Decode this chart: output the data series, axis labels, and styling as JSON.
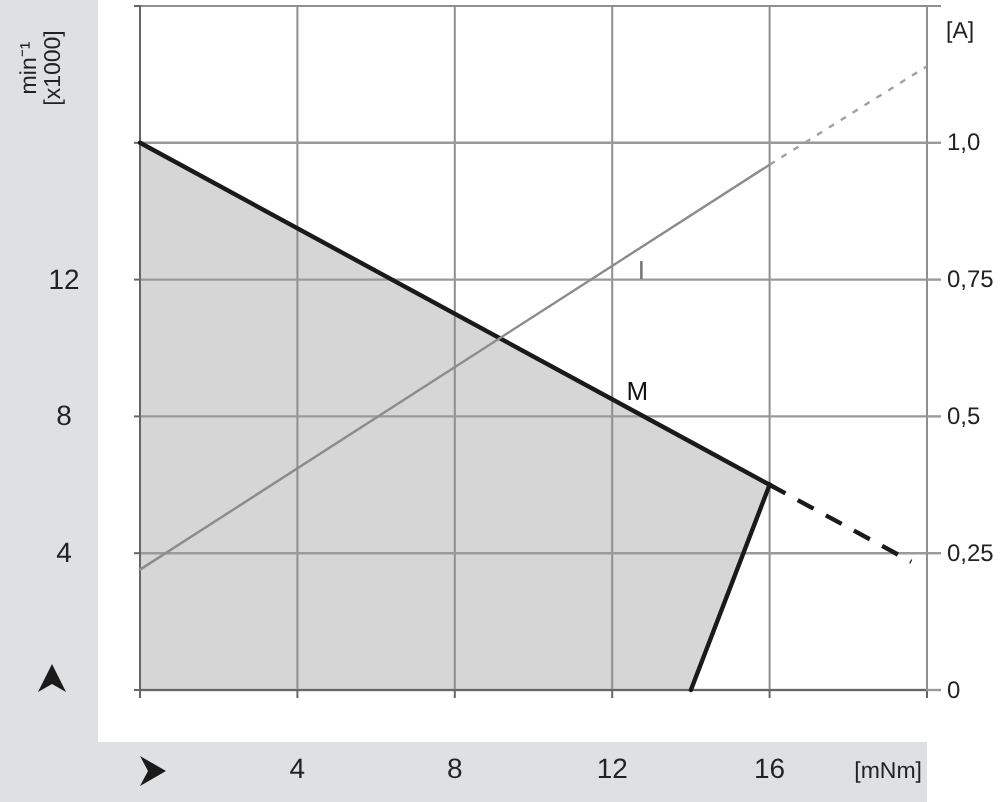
{
  "chart_data": {
    "type": "line",
    "xlabel": "[mNm]",
    "ylabel": "min⁻¹\n[x1000]",
    "y2label": "[A]",
    "xlim": [
      0,
      20
    ],
    "xticks": [
      {
        "value": 0,
        "label": null
      },
      4,
      8,
      12,
      16
    ],
    "ylim": [
      0,
      20
    ],
    "yticks": [
      {
        "value": 0,
        "label": null
      },
      4,
      8,
      12,
      {
        "value": 16,
        "label": null
      }
    ],
    "y2lim": [
      0,
      1.25
    ],
    "y2ticks": [
      0,
      {
        "value": 0.25,
        "label": "0,25"
      },
      {
        "value": 0.5,
        "label": "0,5"
      },
      {
        "value": 0.75,
        "label": "0,75"
      },
      {
        "value": 1.0,
        "label": "1,0"
      }
    ],
    "grid": true,
    "series": [
      {
        "name": "M",
        "color": "#1a1a1a",
        "x": [
          0,
          14,
          16
        ],
        "values": [
          16,
          7.25,
          6
        ],
        "lower": [
          0,
          0,
          6
        ],
        "upper": [
          16,
          7.25,
          6
        ]
      },
      {
        "color": "#1a1a1a",
        "x": [
          14,
          16
        ],
        "values": [
          0,
          6
        ]
      },
      {
        "color": "#1a1a1a",
        "line_style": "dashed",
        "x": [
          16,
          19.6
        ],
        "values": [
          6,
          3.75
        ]
      },
      {
        "name": "I",
        "axis": "y2",
        "color": "#8c8c8c",
        "x": [
          0,
          16
        ],
        "values": [
          0.22,
          0.96
        ]
      },
      {
        "axis": "y2",
        "color": "#a0a0a0",
        "line_style": "dotted",
        "x": [
          16,
          20
        ],
        "values": [
          0.96,
          1.14
        ]
      }
    ]
  }
}
